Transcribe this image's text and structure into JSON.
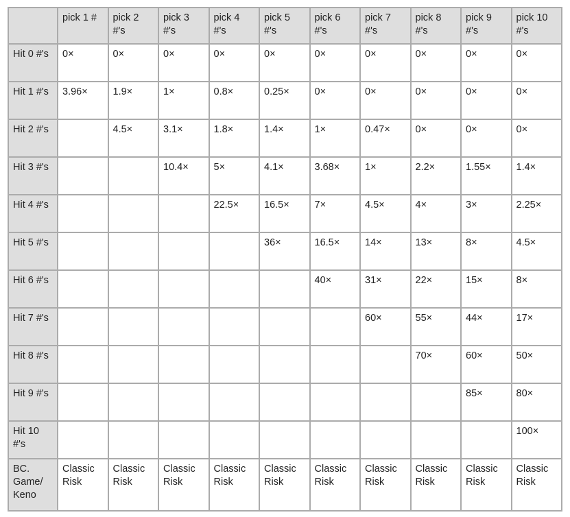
{
  "table": {
    "corner": "",
    "columns": [
      "pick 1 #",
      "pick 2 #'s",
      "pick 3 #'s",
      "pick 4 #'s",
      "pick 5 #'s",
      "pick 6 #'s",
      "pick 7 #'s",
      "pick 8 #'s",
      "pick 9 #'s",
      "pick 10 #'s"
    ],
    "rows": [
      {
        "label": "Hit 0 #'s",
        "cells": [
          "0×",
          "0×",
          "0×",
          "0×",
          "0×",
          "0×",
          "0×",
          "0×",
          "0×",
          "0×"
        ]
      },
      {
        "label": "Hit 1 #'s",
        "cells": [
          "3.96×",
          "1.9×",
          "1×",
          "0.8×",
          "0.25×",
          "0×",
          "0×",
          "0×",
          "0×",
          "0×"
        ]
      },
      {
        "label": "Hit 2 #'s",
        "cells": [
          "",
          "4.5×",
          "3.1×",
          "1.8×",
          "1.4×",
          "1×",
          "0.47×",
          "0×",
          "0×",
          "0×"
        ]
      },
      {
        "label": "Hit 3 #'s",
        "cells": [
          "",
          "",
          "10.4×",
          "5×",
          "4.1×",
          "3.68×",
          "1×",
          "2.2×",
          "1.55×",
          "1.4×"
        ]
      },
      {
        "label": "Hit 4 #'s",
        "cells": [
          "",
          "",
          "",
          "22.5×",
          "16.5×",
          "7×",
          "4.5×",
          "4×",
          "3×",
          "2.25×"
        ]
      },
      {
        "label": "Hit 5 #'s",
        "cells": [
          "",
          "",
          "",
          "",
          "36×",
          "16.5×",
          "14×",
          "13×",
          "8×",
          "4.5×"
        ]
      },
      {
        "label": "Hit 6 #'s",
        "cells": [
          "",
          "",
          "",
          "",
          "",
          "40×",
          "31×",
          "22×",
          "15×",
          "8×"
        ]
      },
      {
        "label": "Hit 7 #'s",
        "cells": [
          "",
          "",
          "",
          "",
          "",
          "",
          "60×",
          "55×",
          "44×",
          "17×"
        ]
      },
      {
        "label": "Hit 8 #'s",
        "cells": [
          "",
          "",
          "",
          "",
          "",
          "",
          "",
          "70×",
          "60×",
          "50×"
        ]
      },
      {
        "label": "Hit 9 #'s",
        "cells": [
          "",
          "",
          "",
          "",
          "",
          "",
          "",
          "",
          "85×",
          "80×"
        ]
      },
      {
        "label": "Hit 10 #'s",
        "cells": [
          "",
          "",
          "",
          "",
          "",
          "",
          "",
          "",
          "",
          "100×"
        ]
      }
    ],
    "footer": {
      "label": "BC. Game/ Keno",
      "cells": [
        "Classic Risk",
        "Classic Risk",
        "Classic Risk",
        "Classic Risk",
        "Classic Risk",
        "Classic Risk",
        "Classic Risk",
        "Classic Risk",
        "Classic Risk",
        "Classic Risk"
      ]
    }
  }
}
